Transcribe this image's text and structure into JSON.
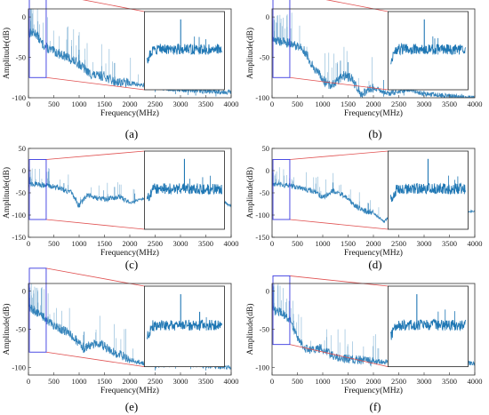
{
  "figure": {
    "colors": {
      "signal": "#1f77b4",
      "zoom_box": "#3a3ae0",
      "connector": "#e05050",
      "inset_frame": "#222222",
      "axes": "#333333"
    }
  },
  "chart_data": [
    {
      "type": "line",
      "label": "(a)",
      "xlabel": "Frequency(MHz)",
      "ylabel": "Amplitude(dB)",
      "xlim": [
        0,
        4000
      ],
      "ylim": [
        -100,
        10
      ],
      "xticks": [
        0,
        500,
        1000,
        1500,
        2000,
        2500,
        3000,
        3500,
        4000
      ],
      "yticks": [
        0,
        -50,
        -100
      ],
      "trace_profile": [
        [
          0,
          -20
        ],
        [
          150,
          -20
        ],
        [
          250,
          -32
        ],
        [
          400,
          -40
        ],
        [
          700,
          -48
        ],
        [
          1000,
          -58
        ],
        [
          1200,
          -70
        ],
        [
          1350,
          -73
        ],
        [
          1500,
          -73
        ],
        [
          1650,
          -79
        ],
        [
          2000,
          -82
        ],
        [
          2300,
          -85
        ],
        [
          2600,
          -88
        ],
        [
          3000,
          -90
        ],
        [
          3500,
          -92
        ],
        [
          4000,
          -93
        ]
      ],
      "spike_freqs": [
        1000,
        1700,
        2500,
        2900,
        3150,
        3300,
        3700
      ],
      "zoom_region": {
        "x": [
          0,
          350
        ],
        "y": [
          -75,
          30
        ]
      },
      "inset_peak_fraction": 0.45
    },
    {
      "type": "line",
      "label": "(b)",
      "xlabel": "Frequency(MHz)",
      "ylabel": "Amplitude(dB)",
      "xlim": [
        0,
        4000
      ],
      "ylim": [
        -100,
        10
      ],
      "xticks": [
        0,
        500,
        1000,
        1500,
        2000,
        2500,
        3000,
        3500,
        4000
      ],
      "yticks": [
        0,
        -50,
        -100
      ],
      "trace_profile": [
        [
          0,
          -28
        ],
        [
          300,
          -32
        ],
        [
          600,
          -38
        ],
        [
          800,
          -60
        ],
        [
          1000,
          -78
        ],
        [
          1150,
          -85
        ],
        [
          1300,
          -78
        ],
        [
          1400,
          -72
        ],
        [
          1550,
          -75
        ],
        [
          1750,
          -95
        ],
        [
          2000,
          -88
        ],
        [
          2300,
          -95
        ],
        [
          2700,
          -90
        ],
        [
          3000,
          -95
        ],
        [
          3500,
          -98
        ],
        [
          4000,
          -100
        ]
      ],
      "spike_freqs": [
        1350,
        1500,
        2200,
        2600
      ],
      "zoom_region": {
        "x": [
          0,
          350
        ],
        "y": [
          -75,
          30
        ]
      },
      "inset_peak_fraction": 0.45
    },
    {
      "type": "line",
      "label": "(c)",
      "xlabel": "Frequency(MHz)",
      "ylabel": "Amplitude(dB)",
      "xlim": [
        0,
        4000
      ],
      "ylim": [
        -150,
        50
      ],
      "xticks": [
        0,
        500,
        1000,
        1500,
        2000,
        2500,
        3000,
        3500,
        4000
      ],
      "yticks": [
        50,
        0,
        -50,
        -100,
        -150
      ],
      "trace_profile": [
        [
          0,
          -30
        ],
        [
          300,
          -32
        ],
        [
          600,
          -38
        ],
        [
          850,
          -50
        ],
        [
          1000,
          -80
        ],
        [
          1150,
          -55
        ],
        [
          1500,
          -65
        ],
        [
          1800,
          -58
        ],
        [
          2000,
          -72
        ],
        [
          2300,
          -62
        ],
        [
          2700,
          -68
        ],
        [
          3000,
          -55
        ],
        [
          3300,
          -65
        ],
        [
          3700,
          -60
        ],
        [
          4000,
          -80
        ]
      ],
      "spike_freqs": [
        700,
        1700,
        2100,
        2600,
        3100
      ],
      "zoom_region": {
        "x": [
          0,
          350
        ],
        "y": [
          -110,
          25
        ]
      },
      "inset_peak_fraction": 0.5
    },
    {
      "type": "line",
      "label": "(d)",
      "xlabel": "Frequency(MHz)",
      "ylabel": "Amplitude(dB)",
      "xlim": [
        0,
        4000
      ],
      "ylim": [
        -150,
        50
      ],
      "xticks": [
        0,
        500,
        1000,
        1500,
        2000,
        2500,
        3000,
        3500,
        4000
      ],
      "yticks": [
        50,
        0,
        -50,
        -100,
        -150
      ],
      "trace_profile": [
        [
          0,
          -30
        ],
        [
          400,
          -35
        ],
        [
          800,
          -45
        ],
        [
          1000,
          -60
        ],
        [
          1200,
          -45
        ],
        [
          1400,
          -55
        ],
        [
          1600,
          -75
        ],
        [
          1800,
          -90
        ],
        [
          2000,
          -95
        ],
        [
          2200,
          -115
        ],
        [
          2500,
          -85
        ],
        [
          3000,
          -80
        ],
        [
          3500,
          -90
        ],
        [
          4000,
          -92
        ]
      ],
      "spike_freqs": [
        1200,
        1900,
        2400,
        3000
      ],
      "zoom_region": {
        "x": [
          0,
          350
        ],
        "y": [
          -110,
          25
        ]
      },
      "inset_peak_fraction": 0.5
    },
    {
      "type": "line",
      "label": "(e)",
      "xlabel": "Frequency(MHz)",
      "ylabel": "Amplitude(dB)",
      "xlim": [
        0,
        4000
      ],
      "ylim": [
        -110,
        10
      ],
      "xticks": [
        0,
        500,
        1000,
        1500,
        2000,
        2500,
        3000,
        3500,
        4000
      ],
      "yticks": [
        0,
        -50,
        -100
      ],
      "trace_profile": [
        [
          0,
          -20
        ],
        [
          250,
          -32
        ],
        [
          500,
          -45
        ],
        [
          800,
          -55
        ],
        [
          1100,
          -75
        ],
        [
          1250,
          -70
        ],
        [
          1400,
          -68
        ],
        [
          1550,
          -75
        ],
        [
          1750,
          -82
        ],
        [
          2100,
          -92
        ],
        [
          2500,
          -98
        ],
        [
          3000,
          -95
        ],
        [
          3500,
          -98
        ],
        [
          4000,
          -100
        ]
      ],
      "spike_freqs": [
        1100,
        2500,
        2900,
        3200,
        3500
      ],
      "zoom_region": {
        "x": [
          0,
          350
        ],
        "y": [
          -80,
          30
        ]
      },
      "inset_peak_fraction": 0.45
    },
    {
      "type": "line",
      "label": "(f)",
      "xlabel": "Frequency(MHz)",
      "ylabel": "Amplitude(dB)",
      "xlim": [
        0,
        4000
      ],
      "ylim": [
        -110,
        10
      ],
      "xticks": [
        0,
        500,
        1000,
        1500,
        2000,
        2500,
        3000,
        3500,
        4000
      ],
      "yticks": [
        0,
        -50,
        -100
      ],
      "trace_profile": [
        [
          0,
          -25
        ],
        [
          200,
          -28
        ],
        [
          350,
          -38
        ],
        [
          500,
          -60
        ],
        [
          650,
          -75
        ],
        [
          800,
          -78
        ],
        [
          950,
          -75
        ],
        [
          1100,
          -80
        ],
        [
          1300,
          -88
        ],
        [
          2000,
          -92
        ],
        [
          3000,
          -95
        ],
        [
          4000,
          -95
        ]
      ],
      "spike_freqs": [],
      "zoom_region": {
        "x": [
          0,
          350
        ],
        "y": [
          -70,
          20
        ]
      },
      "inset_peak_fraction": 0.35
    }
  ]
}
